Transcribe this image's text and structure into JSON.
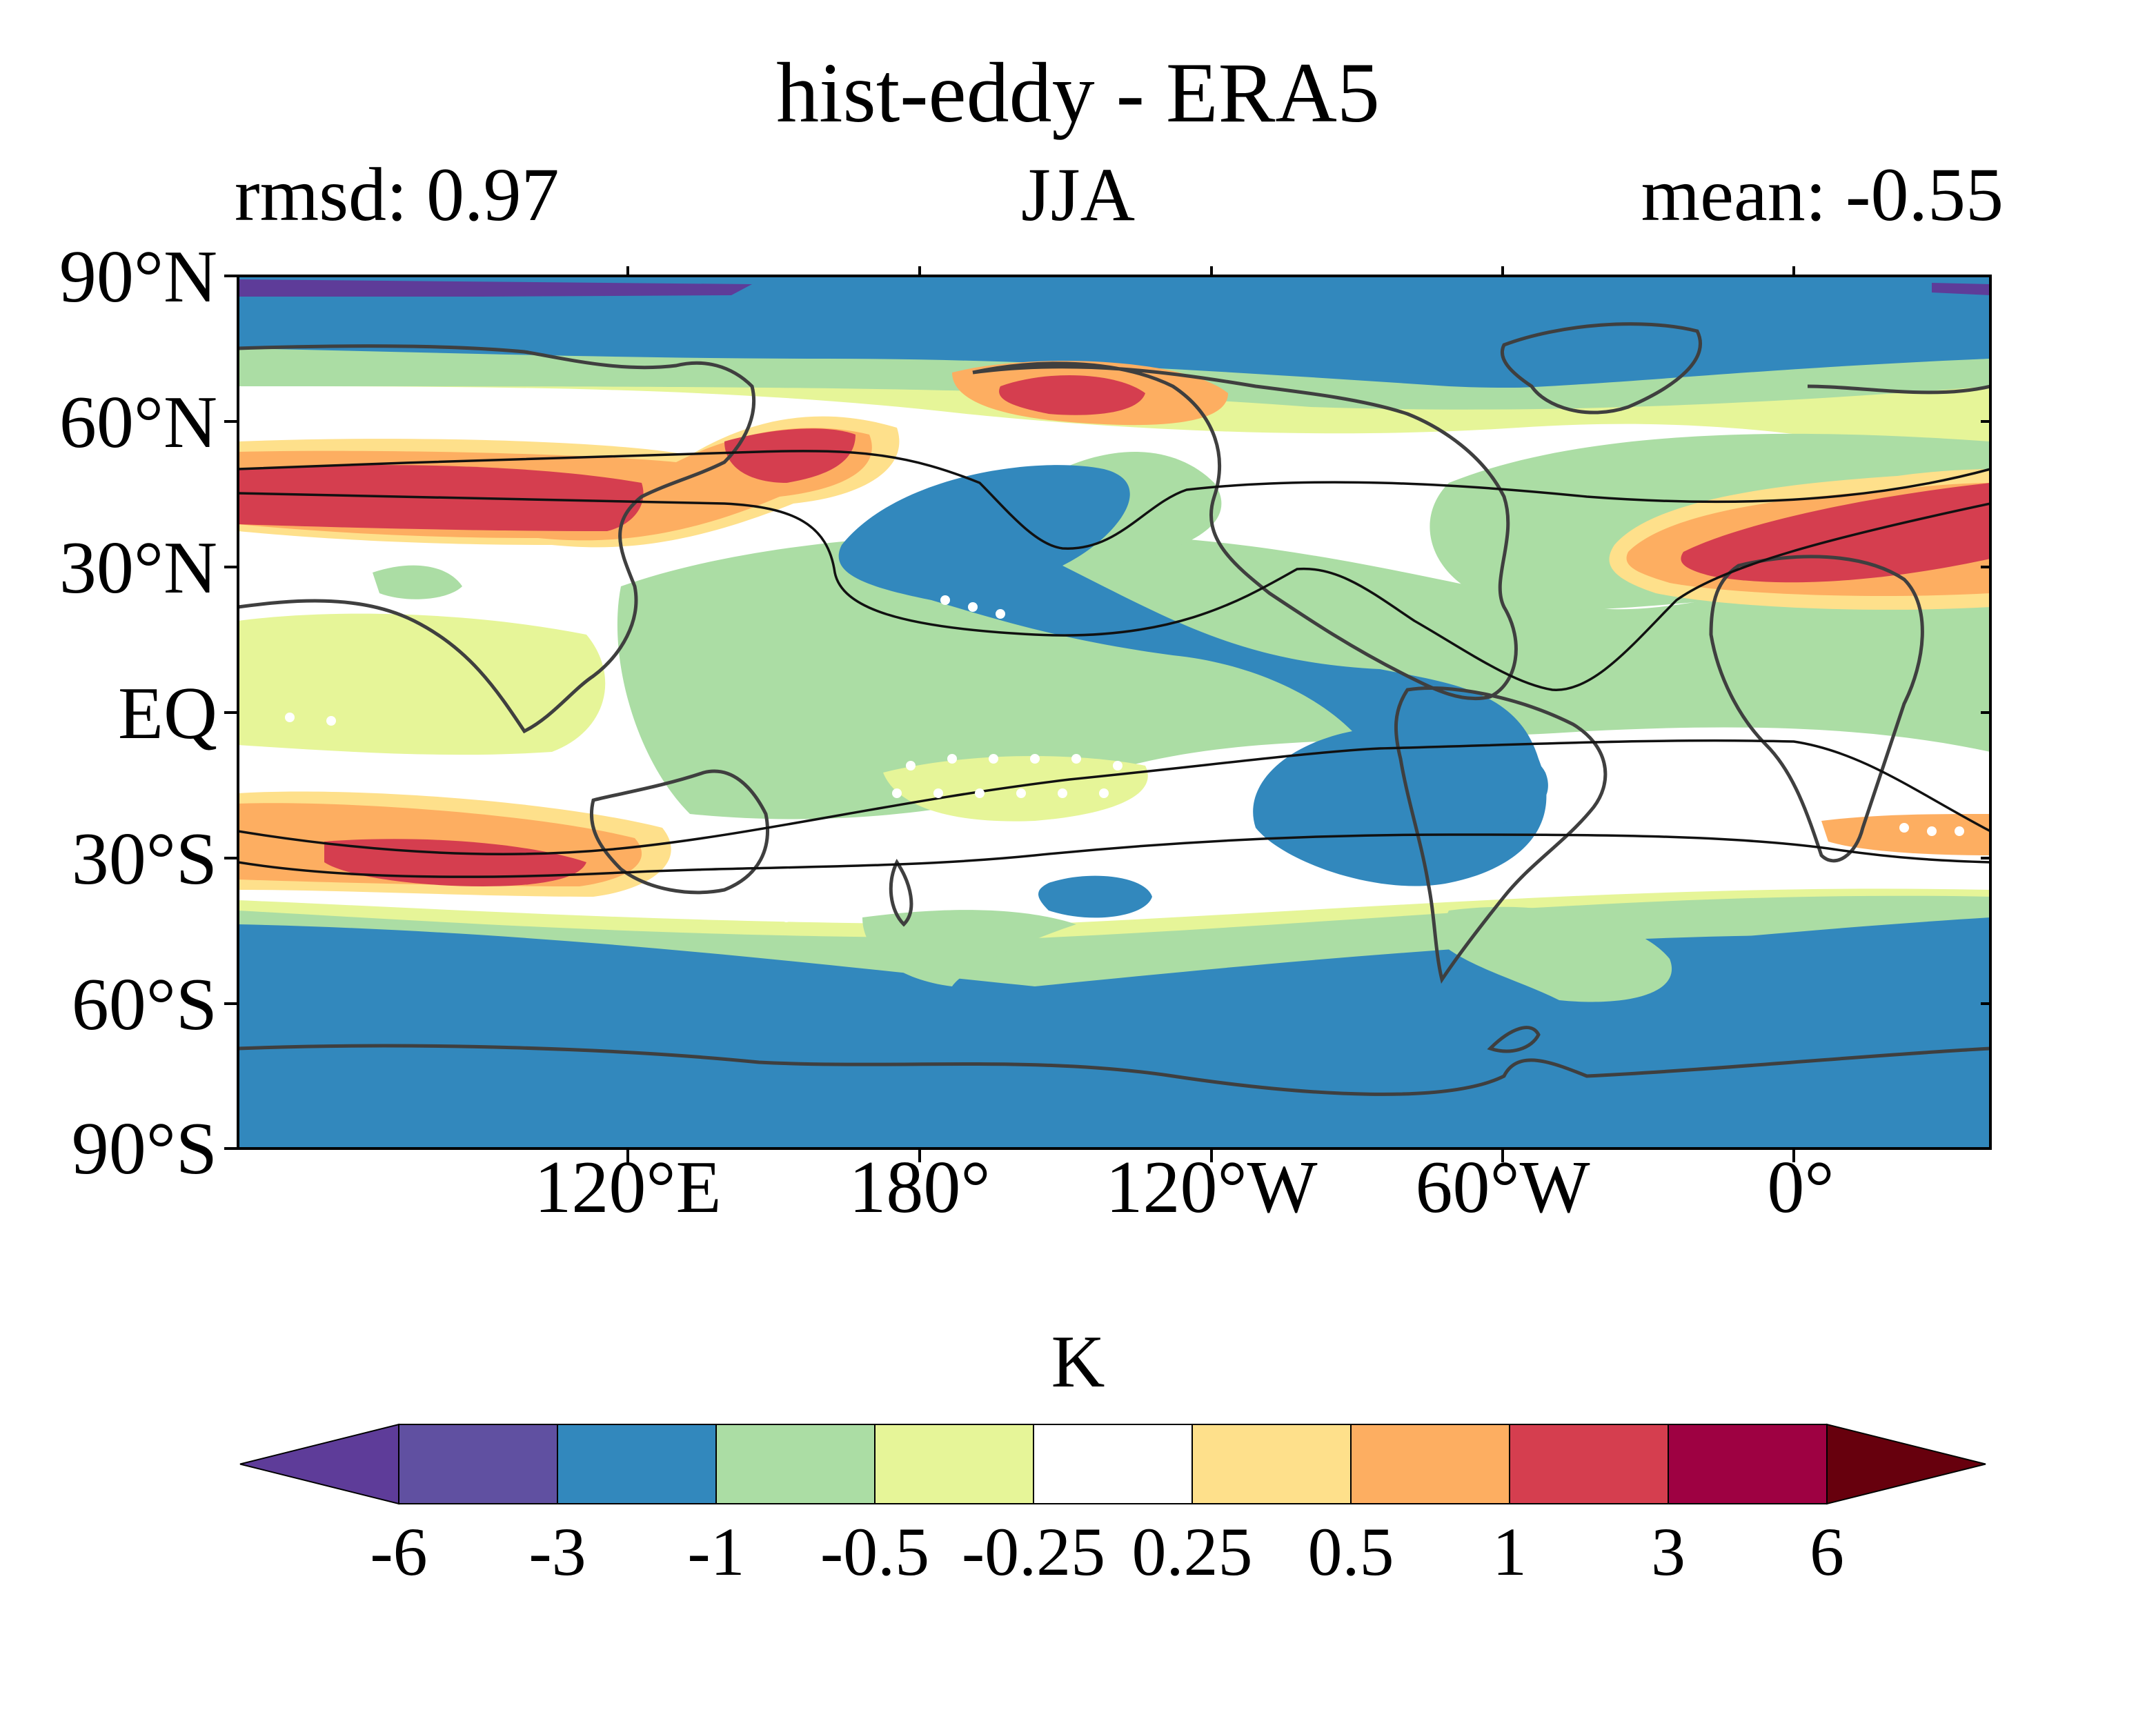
{
  "title": "hist-eddy - ERA5",
  "left_string": "rmsd: 0.97",
  "center_string": "JJA",
  "right_string": "mean: -0.55",
  "lat_labels": [
    "90°N",
    "60°N",
    "30°N",
    "EQ",
    "30°S",
    "60°S",
    "90°S"
  ],
  "lon_labels": [
    "120°E",
    "180°",
    "120°W",
    "60°W",
    "0°"
  ],
  "units": "K",
  "colorbar": {
    "levels": [
      "-6",
      "-3",
      "-1",
      "-0.5",
      "-0.25",
      "0.25",
      "0.5",
      "1",
      "3",
      "6"
    ],
    "colors": [
      "#5e3c99",
      "#6050a1",
      "#3288bd",
      "#abdda4",
      "#e6f598",
      "#ffffff",
      "#fee08b",
      "#fdae61",
      "#d53e4f",
      "#9e0142",
      "#67000d"
    ]
  },
  "colors": {
    "land_outline": "#3f3f3f",
    "jet_contour": "#111111",
    "stipple": "#ffffff"
  }
}
